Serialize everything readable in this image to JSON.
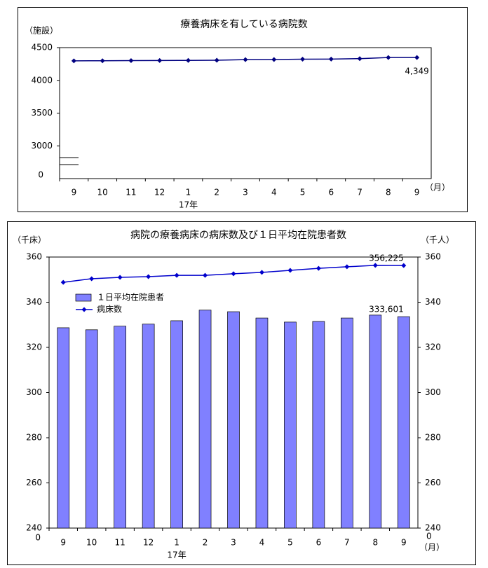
{
  "chart_data": [
    {
      "type": "line",
      "title": "療養病床を有している病院数",
      "y_label": "（施設）",
      "x_unit": "（月）",
      "categories": [
        "9",
        "10",
        "11",
        "12",
        "1",
        "2",
        "3",
        "4",
        "5",
        "6",
        "7",
        "8",
        "9"
      ],
      "year_label": "17年",
      "values": [
        4298,
        4300,
        4302,
        4304,
        4305,
        4308,
        4317,
        4318,
        4323,
        4325,
        4332,
        4349,
        4349
      ],
      "value_labels": [
        null,
        null,
        null,
        null,
        null,
        null,
        null,
        null,
        null,
        null,
        null,
        null,
        "4,349"
      ],
      "color": "#000080",
      "ylim": [
        2500,
        4500
      ],
      "yticks": [
        3000,
        3500,
        4000,
        4500
      ],
      "y_break_label": "0"
    },
    {
      "type": "combo",
      "title": "病院の療養病床の病床数及び１日平均在院患者数",
      "y_label": "（千床）",
      "y2_label": "（千人）",
      "x_unit": "（月）",
      "categories": [
        "9",
        "10",
        "11",
        "12",
        "1",
        "2",
        "3",
        "4",
        "5",
        "6",
        "7",
        "8",
        "9"
      ],
      "year_label": "17年",
      "series": [
        {
          "name": "１日平均在院患者",
          "kind": "bar",
          "axis": "y2",
          "color": "#8080ff",
          "values": [
            328.7,
            327.8,
            329.4,
            330.3,
            331.8,
            336.5,
            335.8,
            333.0,
            331.2,
            331.5,
            333.0,
            334.3,
            333.601
          ],
          "value_labels": [
            null,
            null,
            null,
            null,
            null,
            null,
            null,
            null,
            null,
            null,
            null,
            null,
            "333,601"
          ]
        },
        {
          "name": "病床数",
          "kind": "line",
          "color": "#0000cc",
          "values": [
            348.8,
            350.4,
            351.0,
            351.3,
            351.9,
            351.9,
            352.6,
            353.2,
            354.1,
            355.0,
            355.7,
            356.3,
            356.225
          ],
          "value_labels": [
            null,
            null,
            null,
            null,
            null,
            null,
            null,
            null,
            null,
            null,
            null,
            null,
            "356,225"
          ]
        }
      ],
      "ylim": [
        240,
        360
      ],
      "yticks": [
        240,
        260,
        280,
        300,
        320,
        340,
        360
      ],
      "y2lim": [
        240,
        360
      ],
      "y2ticks": [
        240,
        260,
        280,
        300,
        320,
        340,
        360
      ],
      "y_break_label": "0",
      "y2_break_label": "0"
    }
  ]
}
